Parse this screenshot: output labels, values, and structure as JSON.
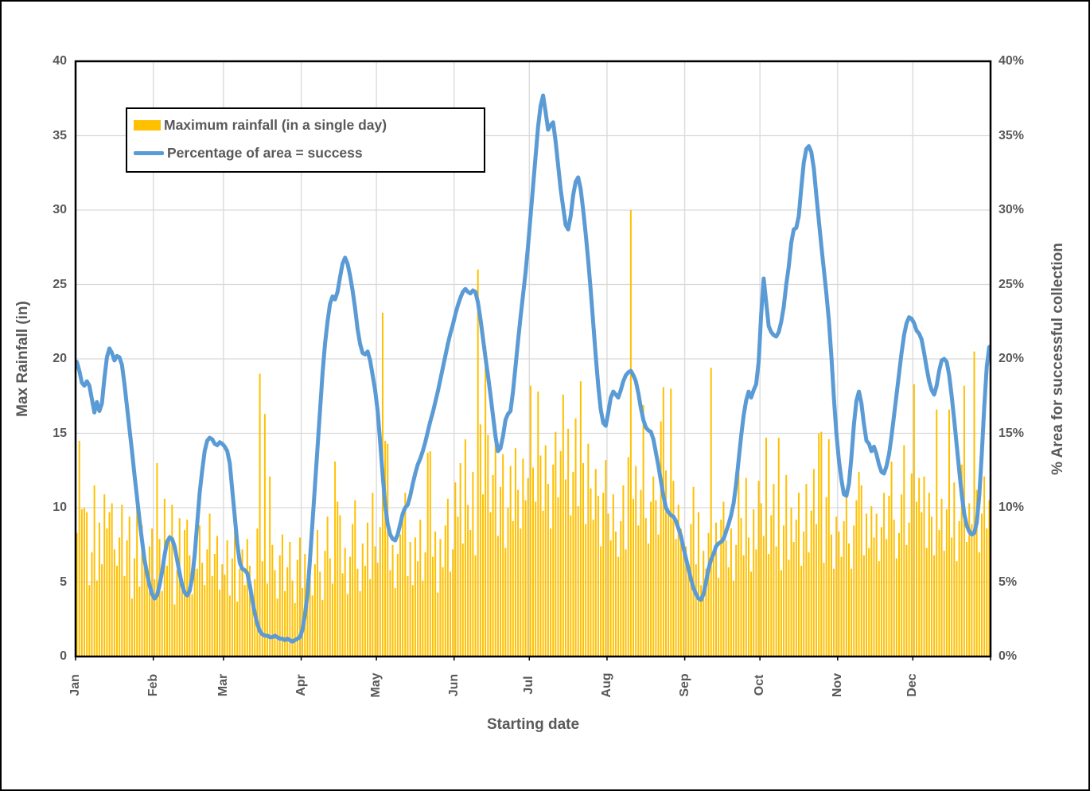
{
  "legend": {
    "bar_label": "Maximum rainfall (in a single day)",
    "line_label": "Percentage of area = success"
  },
  "axes": {
    "x_title": "Starting date",
    "y_left_title": "Max Rainfall (in)",
    "y_right_title": "% Area for successful collection",
    "y_left_ticks": [
      "0",
      "5",
      "10",
      "15",
      "20",
      "25",
      "30",
      "35",
      "40"
    ],
    "y_right_ticks": [
      "0%",
      "5%",
      "10%",
      "15%",
      "20%",
      "25%",
      "30%",
      "35%",
      "40%"
    ],
    "x_ticks": [
      "Jan",
      "Feb",
      "Mar",
      "Apr",
      "May",
      "Jun",
      "Jul",
      "Aug",
      "Sep",
      "Oct",
      "Nov",
      "Dec"
    ]
  },
  "colors": {
    "bar": "#FFC000",
    "line": "#5B9BD5",
    "grid": "#D9D9D9",
    "axis_text": "#595959",
    "border": "#000000",
    "background": "#FFFFFF"
  },
  "chart_data": {
    "type": "bar+line combo, daily values over one year",
    "x_unit": "day of year (Jan 1 - Dec 31)",
    "month_lengths": [
      31,
      28,
      31,
      30,
      31,
      30,
      31,
      31,
      30,
      31,
      30,
      31
    ],
    "y_left_range": [
      0,
      40
    ],
    "y_right_range": [
      0,
      40
    ],
    "grid": "horizontal every 5 units, vertical at month starts",
    "legend_position": "top-left inside plot",
    "series": [
      {
        "name": "Maximum rainfall (in a single day)",
        "type": "bar",
        "axis": "left",
        "values": [
          8.3,
          14.5,
          9.9,
          10.0,
          9.7,
          4.8,
          7.0,
          11.5,
          5.1,
          9.0,
          6.2,
          10.9,
          8.6,
          9.7,
          10.3,
          7.2,
          6.1,
          8.0,
          10.2,
          5.4,
          7.8,
          9.4,
          3.9,
          6.6,
          10.2,
          4.7,
          8.8,
          6.4,
          5.6,
          7.4,
          8.6,
          5.2,
          13.0,
          7.9,
          4.4,
          10.6,
          6.1,
          8.2,
          10.2,
          3.5,
          5.8,
          9.3,
          4.6,
          8.5,
          9.2,
          6.8,
          4.2,
          7.6,
          5.9,
          8.8,
          6.3,
          4.8,
          7.2,
          9.6,
          5.4,
          6.9,
          8.1,
          4.5,
          6.2,
          5.5,
          7.8,
          4.1,
          6.6,
          8.4,
          3.7,
          5.9,
          7.2,
          4.8,
          7.9,
          6.1,
          3.4,
          5.2,
          8.6,
          19.0,
          6.4,
          16.3,
          4.9,
          12.1,
          7.5,
          5.8,
          3.9,
          6.8,
          8.2,
          4.4,
          6.0,
          7.7,
          5.1,
          3.6,
          6.5,
          8.0,
          4.6,
          6.9,
          5.3,
          7.8,
          4.1,
          6.2,
          8.5,
          5.7,
          3.8,
          7.1,
          9.4,
          6.6,
          4.9,
          13.1,
          10.4,
          9.5,
          5.6,
          7.3,
          4.2,
          6.7,
          8.9,
          10.5,
          5.9,
          4.4,
          7.6,
          6.1,
          9.0,
          5.2,
          11.0,
          7.4,
          6.3,
          8.7,
          23.1,
          14.5,
          14.3,
          5.8,
          7.5,
          4.6,
          6.9,
          8.2,
          9.9,
          11.0,
          5.4,
          7.7,
          4.8,
          8.0,
          6.4,
          9.2,
          5.1,
          7.0,
          13.7,
          13.8,
          6.7,
          8.4,
          4.3,
          7.9,
          6.0,
          8.8,
          10.6,
          5.7,
          7.2,
          11.7,
          9.4,
          13.0,
          7.6,
          14.6,
          10.2,
          8.5,
          12.4,
          6.8,
          26.0,
          15.6,
          10.9,
          20.9,
          14.9,
          9.7,
          12.2,
          15.6,
          8.1,
          11.4,
          13.6,
          7.3,
          10.0,
          12.8,
          9.1,
          14.0,
          11.2,
          8.6,
          13.3,
          10.5,
          12.0,
          18.2,
          12.7,
          10.4,
          17.8,
          13.5,
          9.8,
          14.2,
          11.6,
          8.6,
          12.9,
          15.1,
          10.7,
          13.8,
          17.6,
          11.9,
          15.3,
          9.5,
          12.4,
          16.0,
          10.1,
          18.5,
          13.0,
          8.9,
          14.3,
          11.3,
          9.2,
          12.6,
          10.8,
          7.4,
          11.0,
          13.2,
          9.6,
          7.8,
          10.9,
          8.4,
          6.7,
          9.1,
          11.5,
          7.2,
          13.4,
          30.0,
          10.6,
          12.8,
          8.8,
          11.2,
          16.9,
          9.3,
          7.6,
          10.4,
          12.1,
          10.5,
          8.2,
          15.8,
          18.1,
          12.5,
          9.9,
          18.0,
          11.8,
          7.9,
          10.2,
          8.6,
          6.9,
          7.4,
          5.6,
          8.9,
          11.4,
          6.2,
          9.7,
          4.8,
          7.1,
          5.9,
          8.3,
          19.4,
          6.6,
          9.0,
          5.3,
          9.2,
          10.4,
          7.8,
          6.0,
          8.6,
          5.1,
          7.5,
          13.2,
          9.3,
          6.8,
          12.0,
          8.0,
          5.7,
          9.9,
          7.2,
          11.8,
          10.3,
          8.1,
          14.7,
          6.9,
          9.5,
          11.6,
          7.4,
          14.7,
          5.8,
          8.8,
          12.2,
          6.5,
          10.0,
          7.7,
          9.2,
          11.0,
          6.1,
          8.4,
          11.6,
          7.0,
          9.8,
          12.6,
          8.9,
          15.0,
          15.1,
          6.3,
          10.7,
          14.6,
          8.2,
          5.9,
          9.4,
          8.4,
          6.7,
          9.1,
          11.3,
          7.6,
          5.9,
          8.8,
          10.5,
          12.4,
          11.5,
          6.8,
          9.6,
          7.3,
          10.1,
          8.0,
          9.6,
          6.4,
          8.7,
          11.0,
          7.9,
          10.8,
          13.1,
          9.2,
          6.6,
          8.3,
          10.9,
          14.2,
          7.5,
          9.0,
          12.3,
          18.3,
          10.4,
          12.0,
          9.7,
          12.1,
          7.3,
          11.0,
          9.4,
          6.8,
          16.6,
          8.5,
          10.6,
          7.1,
          9.9,
          16.6,
          8.0,
          11.7,
          6.4,
          9.1,
          12.9,
          18.2,
          7.7,
          10.3,
          8.9,
          20.5,
          11.2,
          7.0,
          9.6,
          12.1,
          8.6,
          10.5
        ]
      },
      {
        "name": "Percentage of area = success",
        "type": "line",
        "axis": "right",
        "unit": "%",
        "values": [
          19.8,
          19.2,
          18.4,
          18.2,
          18.5,
          18.2,
          17.3,
          16.4,
          17.1,
          16.5,
          17.0,
          18.7,
          20.1,
          20.7,
          20.4,
          19.9,
          20.2,
          20.1,
          19.6,
          18.3,
          16.8,
          15.3,
          13.8,
          12.2,
          10.7,
          9.2,
          7.8,
          6.5,
          5.6,
          4.8,
          4.2,
          3.9,
          4.1,
          4.8,
          5.7,
          6.8,
          7.7,
          8.0,
          7.9,
          7.4,
          6.5,
          5.6,
          4.8,
          4.3,
          4.1,
          4.4,
          5.3,
          6.8,
          8.9,
          11.0,
          12.5,
          13.8,
          14.5,
          14.7,
          14.6,
          14.3,
          14.2,
          14.4,
          14.3,
          14.1,
          13.8,
          13.0,
          11.2,
          9.4,
          7.6,
          6.3,
          5.9,
          5.8,
          5.6,
          4.8,
          3.8,
          2.9,
          2.2,
          1.7,
          1.5,
          1.4,
          1.4,
          1.3,
          1.3,
          1.4,
          1.3,
          1.2,
          1.2,
          1.1,
          1.2,
          1.1,
          1.0,
          1.1,
          1.2,
          1.3,
          1.8,
          2.8,
          4.2,
          6.5,
          9.0,
          11.5,
          14.0,
          16.5,
          19.0,
          21.0,
          22.5,
          23.7,
          24.2,
          24.0,
          24.5,
          25.5,
          26.4,
          26.8,
          26.4,
          25.6,
          24.6,
          23.4,
          22.0,
          21.0,
          20.4,
          20.3,
          20.5,
          19.9,
          18.9,
          17.9,
          16.5,
          14.4,
          12.2,
          10.2,
          8.9,
          8.2,
          7.9,
          7.8,
          8.2,
          8.9,
          9.6,
          10.0,
          10.2,
          10.8,
          11.6,
          12.3,
          12.9,
          13.3,
          13.8,
          14.4,
          15.1,
          15.8,
          16.4,
          17.1,
          17.8,
          18.6,
          19.4,
          20.2,
          21.0,
          21.7,
          22.3,
          23.0,
          23.6,
          24.1,
          24.5,
          24.7,
          24.5,
          24.4,
          24.6,
          24.5,
          23.8,
          22.7,
          21.4,
          20.1,
          18.9,
          17.6,
          16.2,
          14.8,
          13.8,
          14.0,
          14.8,
          15.9,
          16.3,
          16.5,
          17.8,
          19.5,
          21.2,
          22.8,
          24.3,
          25.8,
          27.6,
          29.6,
          31.6,
          33.6,
          35.6,
          37.0,
          37.7,
          36.6,
          35.4,
          35.7,
          35.9,
          34.6,
          33.0,
          31.4,
          30.2,
          29.0,
          28.7,
          29.6,
          31.0,
          31.9,
          32.2,
          31.4,
          30.0,
          28.4,
          26.6,
          24.6,
          22.4,
          20.2,
          18.2,
          16.6,
          15.7,
          15.5,
          16.4,
          17.4,
          17.8,
          17.6,
          17.4,
          17.9,
          18.5,
          18.9,
          19.1,
          19.2,
          18.9,
          18.5,
          17.7,
          16.7,
          15.9,
          15.4,
          15.2,
          15.1,
          14.6,
          13.7,
          12.8,
          11.8,
          10.8,
          10.0,
          9.7,
          9.5,
          9.4,
          9.1,
          8.6,
          8.1,
          7.3,
          6.6,
          5.9,
          5.2,
          4.6,
          4.2,
          3.9,
          3.8,
          4.2,
          5.0,
          5.9,
          6.5,
          6.9,
          7.4,
          7.6,
          7.7,
          7.9,
          8.4,
          8.9,
          9.5,
          10.3,
          11.6,
          13.2,
          14.8,
          16.2,
          17.2,
          17.8,
          17.4,
          17.9,
          18.3,
          19.8,
          23.0,
          25.4,
          23.8,
          22.2,
          21.8,
          21.6,
          21.5,
          21.8,
          22.5,
          23.5,
          25.0,
          26.2,
          27.8,
          28.7,
          28.8,
          29.6,
          31.5,
          33.2,
          34.1,
          34.3,
          33.9,
          32.8,
          31.0,
          29.3,
          27.6,
          26.0,
          24.4,
          22.6,
          20.2,
          17.4,
          15.0,
          13.2,
          11.9,
          10.9,
          10.8,
          11.6,
          13.4,
          15.6,
          17.2,
          17.8,
          17.0,
          15.6,
          14.5,
          14.3,
          13.8,
          14.1,
          13.6,
          12.9,
          12.4,
          12.3,
          12.8,
          13.6,
          14.8,
          16.2,
          17.6,
          19.0,
          20.4,
          21.6,
          22.4,
          22.8,
          22.7,
          22.4,
          21.9,
          21.7,
          21.3,
          20.4,
          19.4,
          18.5,
          17.9,
          17.6,
          18.2,
          19.2,
          19.9,
          20.0,
          19.8,
          18.9,
          17.5,
          15.9,
          14.2,
          12.5,
          10.9,
          9.6,
          8.8,
          8.4,
          8.2,
          8.3,
          9.0,
          10.8,
          13.6,
          16.8,
          19.5,
          20.8
        ]
      }
    ]
  }
}
